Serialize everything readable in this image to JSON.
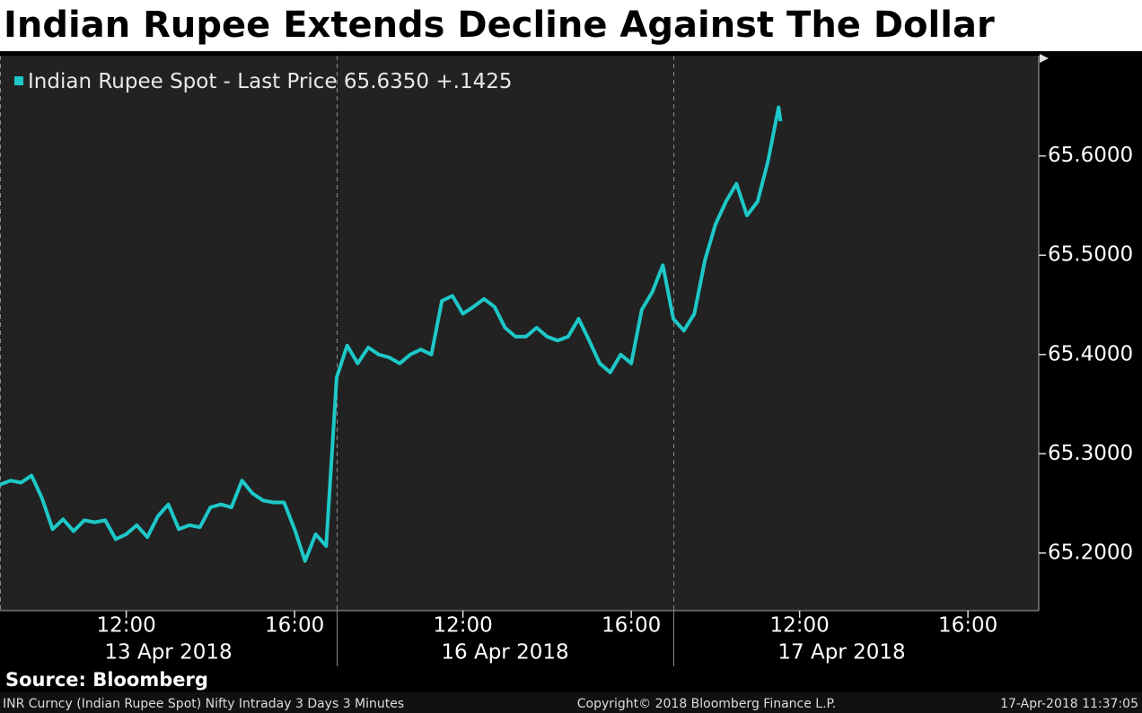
{
  "chart_data": {
    "type": "line",
    "title": "Indian Rupee Extends Decline Against The Dollar",
    "series": [
      {
        "name": "Indian Rupee Spot - Last Price",
        "last_price": "65.6350",
        "change": "+.1425",
        "color": "#1ec8c8",
        "values": [
          65.269,
          65.273,
          65.271,
          65.278,
          65.255,
          65.224,
          65.234,
          65.222,
          65.233,
          65.231,
          65.233,
          65.214,
          65.219,
          65.228,
          65.216,
          65.237,
          65.249,
          65.224,
          65.228,
          65.226,
          65.246,
          65.249,
          65.246,
          65.273,
          65.26,
          65.253,
          65.251,
          65.251,
          65.224,
          65.192,
          65.219,
          65.207,
          65.377,
          65.409,
          65.391,
          65.407,
          65.4,
          65.397,
          65.391,
          65.4,
          65.405,
          65.4,
          65.454,
          65.459,
          65.441,
          65.448,
          65.456,
          65.448,
          65.427,
          65.418,
          65.418,
          65.427,
          65.418,
          65.414,
          65.418,
          65.436,
          65.414,
          65.391,
          65.382,
          65.4,
          65.391,
          65.445,
          65.463,
          65.49,
          65.436,
          65.424,
          65.441,
          65.495,
          65.531,
          65.554,
          65.572,
          65.54,
          65.554,
          65.595,
          65.649,
          65.635
        ]
      }
    ],
    "x": [
      "2018-04-13 09:00",
      "2018-04-13 09:15",
      "2018-04-13 09:30",
      "2018-04-13 09:45",
      "2018-04-13 10:00",
      "2018-04-13 10:15",
      "2018-04-13 10:30",
      "2018-04-13 10:45",
      "2018-04-13 11:00",
      "2018-04-13 11:15",
      "2018-04-13 11:30",
      "2018-04-13 11:45",
      "2018-04-13 12:00",
      "2018-04-13 12:15",
      "2018-04-13 12:30",
      "2018-04-13 12:45",
      "2018-04-13 13:00",
      "2018-04-13 13:15",
      "2018-04-13 13:30",
      "2018-04-13 13:45",
      "2018-04-13 14:00",
      "2018-04-13 14:15",
      "2018-04-13 14:30",
      "2018-04-13 14:45",
      "2018-04-13 15:00",
      "2018-04-13 15:15",
      "2018-04-13 15:30",
      "2018-04-13 15:45",
      "2018-04-13 16:00",
      "2018-04-13 16:15",
      "2018-04-13 16:30",
      "2018-04-13 16:45",
      "2018-04-16 09:00",
      "2018-04-16 09:15",
      "2018-04-16 09:30",
      "2018-04-16 09:45",
      "2018-04-16 10:00",
      "2018-04-16 10:15",
      "2018-04-16 10:30",
      "2018-04-16 10:45",
      "2018-04-16 11:00",
      "2018-04-16 11:15",
      "2018-04-16 11:30",
      "2018-04-16 11:45",
      "2018-04-16 12:00",
      "2018-04-16 12:15",
      "2018-04-16 12:30",
      "2018-04-16 12:45",
      "2018-04-16 13:00",
      "2018-04-16 13:15",
      "2018-04-16 13:30",
      "2018-04-16 13:45",
      "2018-04-16 14:00",
      "2018-04-16 14:15",
      "2018-04-16 14:30",
      "2018-04-16 14:45",
      "2018-04-16 15:00",
      "2018-04-16 15:15",
      "2018-04-16 15:30",
      "2018-04-16 15:45",
      "2018-04-16 16:00",
      "2018-04-16 16:15",
      "2018-04-16 16:30",
      "2018-04-16 16:45",
      "2018-04-17 09:00",
      "2018-04-17 09:15",
      "2018-04-17 09:30",
      "2018-04-17 09:45",
      "2018-04-17 10:00",
      "2018-04-17 10:15",
      "2018-04-17 10:30",
      "2018-04-17 10:45",
      "2018-04-17 11:00",
      "2018-04-17 11:15",
      "2018-04-17 11:30",
      "2018-04-17 11:33"
    ],
    "xticks": [
      {
        "value": "2018-04-13 12:00",
        "label": "12:00"
      },
      {
        "value": "2018-04-13 16:00",
        "label": "16:00"
      },
      {
        "value": "2018-04-16 12:00",
        "label": "12:00"
      },
      {
        "value": "2018-04-16 16:00",
        "label": "16:00"
      },
      {
        "value": "2018-04-17 12:00",
        "label": "12:00"
      },
      {
        "value": "2018-04-17 16:00",
        "label": "16:00"
      }
    ],
    "day_labels": [
      "13 Apr 2018",
      "16 Apr 2018",
      "17 Apr 2018"
    ],
    "ylim": [
      65.142,
      65.701
    ],
    "yticks": [
      {
        "value": 65.2,
        "label": "65.2000"
      },
      {
        "value": 65.3,
        "label": "65.3000"
      },
      {
        "value": 65.4,
        "label": "65.4000"
      },
      {
        "value": 65.5,
        "label": "65.5000"
      },
      {
        "value": 65.6,
        "label": "65.6000"
      }
    ],
    "source": "Source: Bloomberg",
    "footer": {
      "left": "INR Curncy (Indian Rupee Spot) Nifty Intraday 3 Days 3 Minutes",
      "center": "Copyright© 2018 Bloomberg Finance L.P.",
      "right": "17-Apr-2018 11:37:05"
    }
  }
}
